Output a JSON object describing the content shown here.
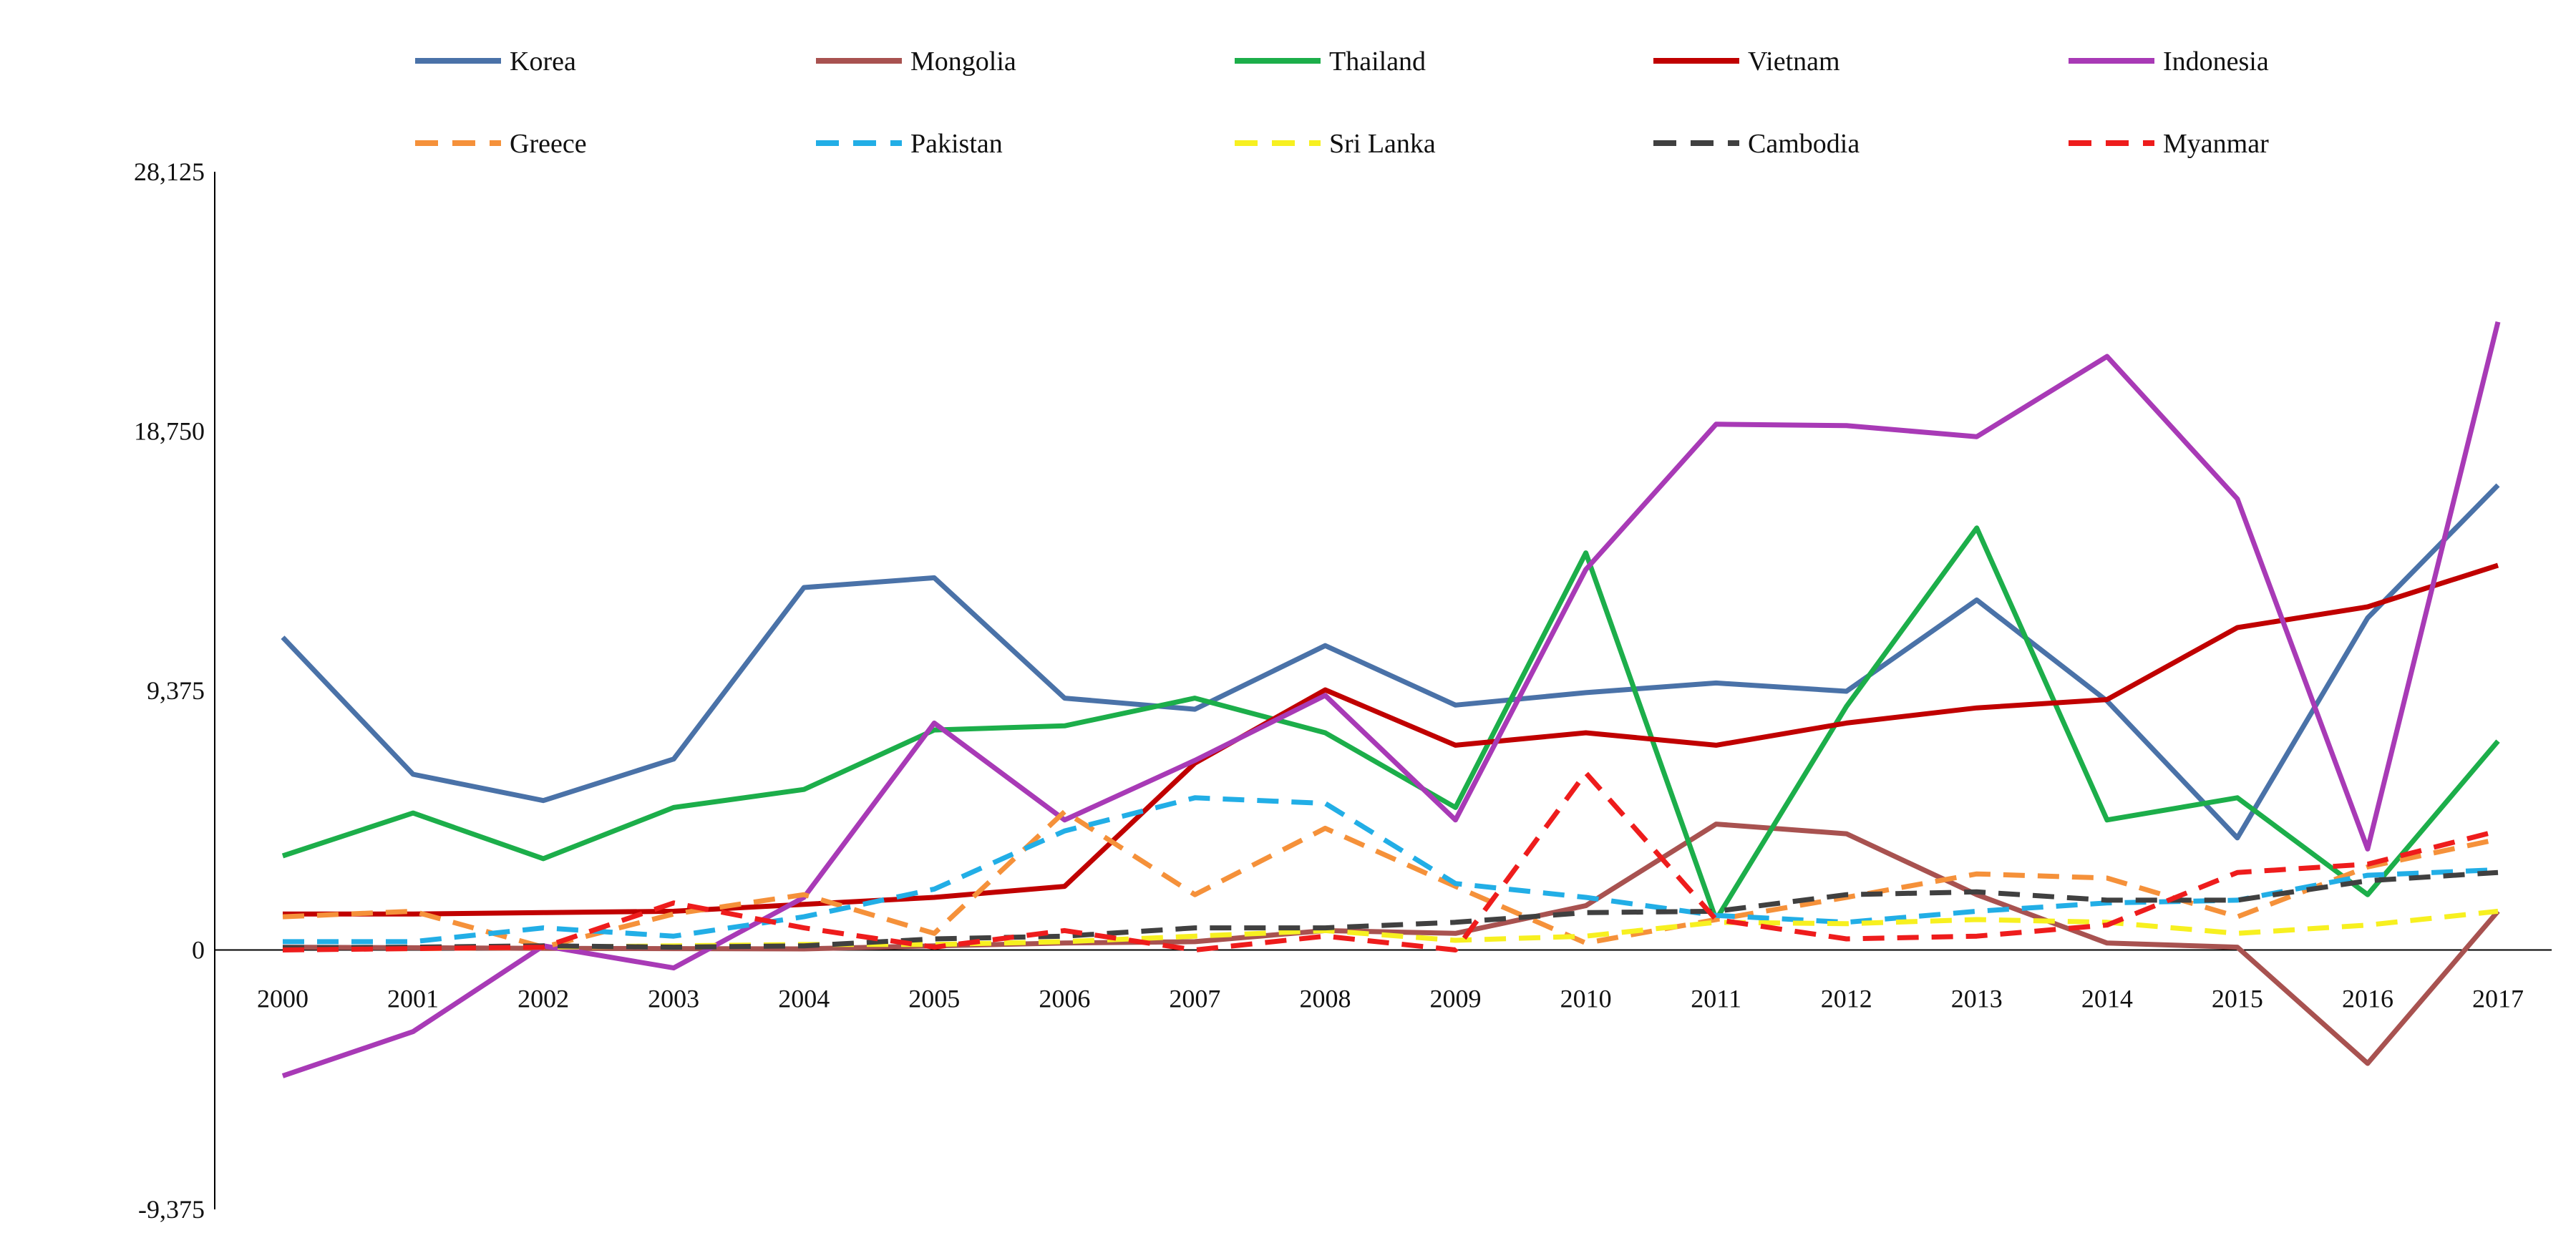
{
  "chart_data": {
    "type": "line",
    "title": "",
    "xlabel": "",
    "ylabel": "",
    "x": [
      "2000",
      "2001",
      "2002",
      "2003",
      "2004",
      "2005",
      "2006",
      "2007",
      "2008",
      "2009",
      "2010",
      "2011",
      "2012",
      "2013",
      "2014",
      "2015",
      "2016",
      "2017"
    ],
    "ylim": [
      -9375,
      28125
    ],
    "y_ticks": [
      -9375,
      0,
      9375,
      18750,
      28125
    ],
    "y_tick_labels": [
      "-9,375",
      "0",
      "9,375",
      "18,750",
      "28,125"
    ],
    "legend_position": "top",
    "series": [
      {
        "name": "Korea",
        "color": "#4a72a8",
        "dash": "solid",
        "values": [
          11300,
          6350,
          5400,
          6900,
          13100,
          13450,
          9100,
          8700,
          11000,
          8850,
          9300,
          9650,
          9350,
          12650,
          9000,
          4050,
          12000,
          16800
        ]
      },
      {
        "name": "Mongolia",
        "color": "#a85250",
        "dash": "solid",
        "values": [
          100,
          80,
          60,
          50,
          40,
          150,
          250,
          300,
          700,
          600,
          1600,
          4550,
          4200,
          2000,
          250,
          100,
          -4100,
          1400
        ]
      },
      {
        "name": "Thailand",
        "color": "#1cae4a",
        "dash": "solid",
        "values": [
          3400,
          4950,
          3300,
          5150,
          5800,
          7950,
          8100,
          9100,
          7850,
          5150,
          14350,
          1100,
          8800,
          15250,
          4700,
          5500,
          2000,
          7550
        ]
      },
      {
        "name": "Vietnam",
        "color": "#c00000",
        "dash": "solid",
        "values": [
          1300,
          1300,
          1350,
          1400,
          1650,
          1900,
          2300,
          6750,
          9400,
          7400,
          7850,
          7400,
          8200,
          8750,
          9050,
          11650,
          12400,
          13900
        ]
      },
      {
        "name": "Indonesia",
        "color": "#a83ab6",
        "dash": "solid",
        "values": [
          -4550,
          -2950,
          150,
          -650,
          1900,
          8200,
          4700,
          6850,
          9200,
          4700,
          13750,
          19000,
          18950,
          18550,
          21450,
          16300,
          3650,
          22700
        ]
      },
      {
        "name": "Greece",
        "color": "#f5913a",
        "dash": "dashed",
        "values": [
          1200,
          1400,
          100,
          1300,
          2000,
          600,
          5000,
          2000,
          4400,
          2300,
          250,
          1100,
          1900,
          2750,
          2600,
          1200,
          3000,
          4000
        ]
      },
      {
        "name": "Pakistan",
        "color": "#22aee6",
        "dash": "dashed",
        "values": [
          300,
          300,
          800,
          500,
          1200,
          2200,
          4300,
          5500,
          5300,
          2400,
          1900,
          1250,
          1000,
          1400,
          1700,
          1800,
          2700,
          2900
        ]
      },
      {
        "name": "Sri Lanka",
        "color": "#f7f020",
        "dash": "dashed",
        "values": [
          50,
          50,
          100,
          150,
          200,
          200,
          300,
          500,
          700,
          350,
          500,
          1000,
          950,
          1100,
          1000,
          600,
          900,
          1400
        ]
      },
      {
        "name": "Cambodia",
        "color": "#404040",
        "dash": "dashed",
        "values": [
          80,
          100,
          150,
          100,
          150,
          400,
          500,
          800,
          800,
          1000,
          1350,
          1400,
          2000,
          2100,
          1800,
          1800,
          2500,
          2800
        ]
      },
      {
        "name": "Myanmar",
        "color": "#ee1c1c",
        "dash": "dashed",
        "values": [
          0,
          50,
          100,
          1700,
          800,
          100,
          700,
          0,
          500,
          0,
          6400,
          1100,
          400,
          500,
          900,
          2800,
          3100,
          4300
        ]
      }
    ]
  }
}
